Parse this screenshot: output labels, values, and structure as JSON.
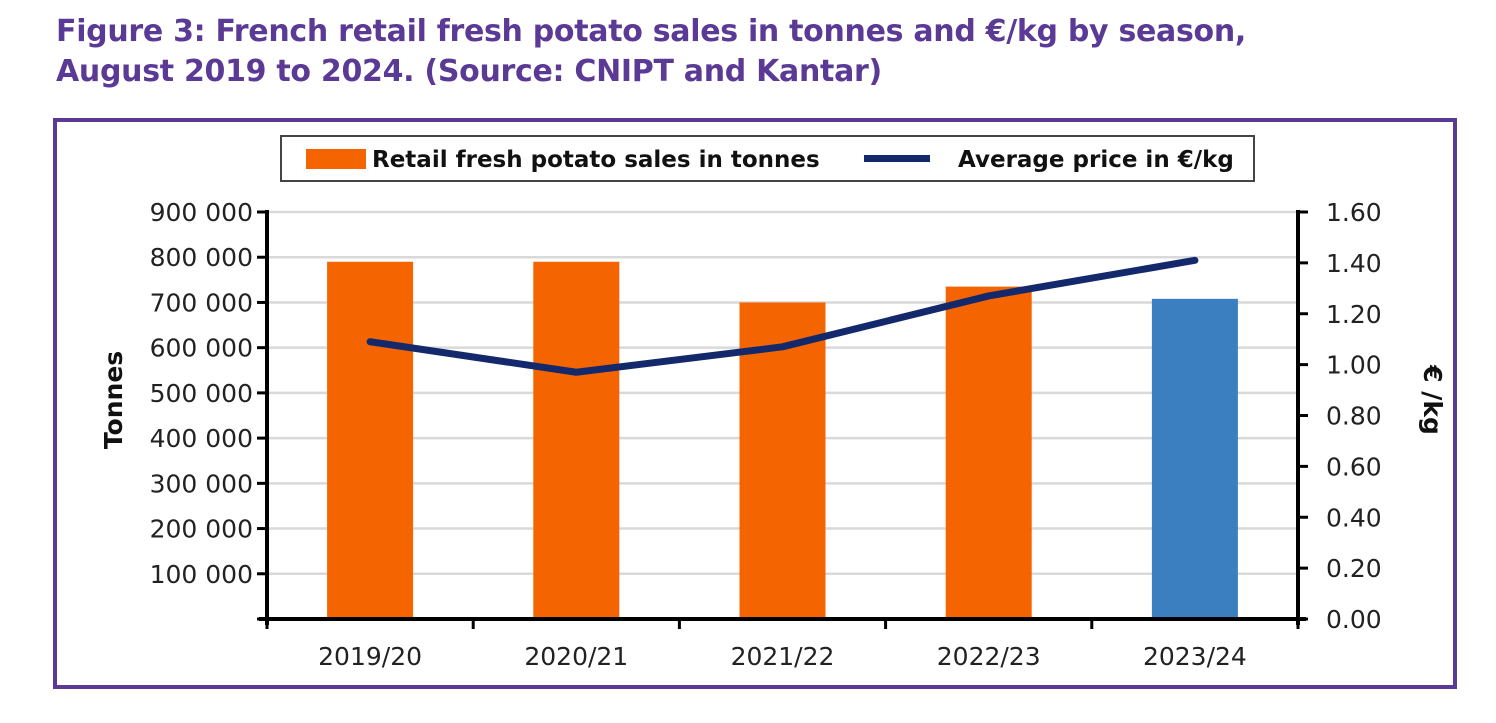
{
  "title": {
    "line1": "Figure 3: French retail fresh potato sales in tonnes and €/kg by season,",
    "line2": "August 2019 to 2024. (Source: CNIPT and Kantar)"
  },
  "colors": {
    "frame": "#5b3a96",
    "title": "#5b3a96",
    "bar_orange": "#f46400",
    "bar_blue": "#3b7fc0",
    "line": "#14296b",
    "grid": "#d9d9d9"
  },
  "chart_data": {
    "type": "bar",
    "title": "Figure 3: French retail fresh potato sales in tonnes and €/kg by season, August 2019 to 2024. (Source: CNIPT and Kantar)",
    "categories": [
      "2019/20",
      "2020/21",
      "2021/22",
      "2022/23",
      "2023/24"
    ],
    "series": [
      {
        "name": "Retail fresh potato sales in tonnes",
        "type": "bar",
        "axis": "left",
        "values": [
          790000,
          790000,
          700000,
          735000,
          708000
        ],
        "bar_colors": [
          "#f46400",
          "#f46400",
          "#f46400",
          "#f46400",
          "#3b7fc0"
        ]
      },
      {
        "name": "Average price in €/kg",
        "type": "line",
        "axis": "right",
        "values": [
          1.09,
          0.97,
          1.07,
          1.27,
          1.41
        ]
      }
    ],
    "ylabel": "Tonnes",
    "y2label": "€ /kg",
    "xlabel": "",
    "ylim": [
      0,
      900000
    ],
    "y2lim": [
      0,
      1.6
    ],
    "yticks": [
      0,
      100000,
      200000,
      300000,
      400000,
      500000,
      600000,
      700000,
      800000,
      900000
    ],
    "ytick_labels": [
      "",
      "100 000",
      "200 000",
      "300 000",
      "400 000",
      "500 000",
      "600 000",
      "700 000",
      "800 000",
      "900 000"
    ],
    "y2ticks": [
      0,
      0.2,
      0.4,
      0.6,
      0.8,
      1.0,
      1.2,
      1.4,
      1.6
    ],
    "y2tick_labels": [
      "0.00",
      "0.20",
      "0.40",
      "0.60",
      "0.80",
      "1.00",
      "1.20",
      "1.40",
      "1.60"
    ],
    "grid": true,
    "legend": {
      "position": "top",
      "entries": [
        "Retail fresh potato sales in tonnes",
        "Average price in €/kg"
      ]
    }
  }
}
